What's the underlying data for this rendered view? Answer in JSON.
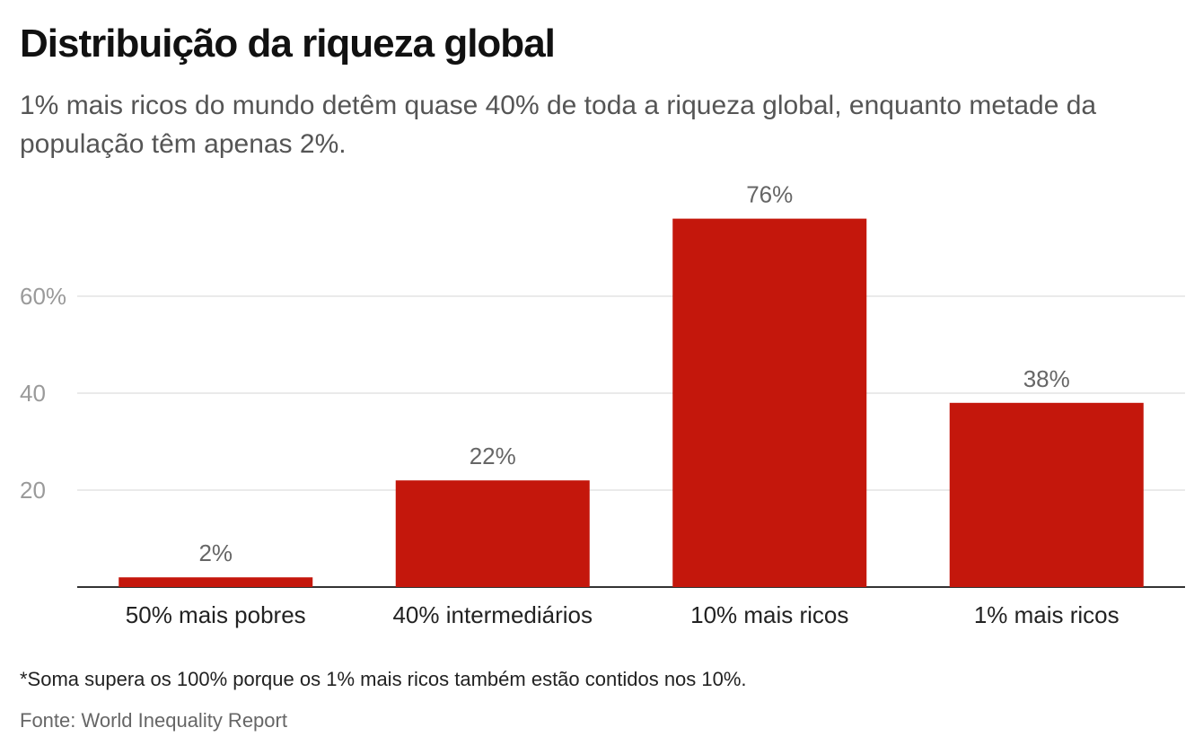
{
  "header": {
    "title": "Distribuição da riqueza global",
    "subtitle": "1% mais ricos do mundo detêm quase 40% de toda a riqueza global, enquanto metade da população têm apenas 2%."
  },
  "footer": {
    "note": "*Soma supera os 100% porque os 1% mais ricos também estão contidos nos 10%.",
    "source": "Fonte: World Inequality Report"
  },
  "colors": {
    "bar": "#c4170c",
    "grid": "#e3e3e3",
    "axis": "#333333",
    "tick_label": "#9a9a9a",
    "value_label": "#666666",
    "category_label": "#222222"
  },
  "chart_data": {
    "type": "bar",
    "categories": [
      "50% mais pobres",
      "40% intermediários",
      "10% mais ricos",
      "1% mais ricos"
    ],
    "values": [
      2,
      22,
      76,
      38
    ],
    "value_labels": [
      "2%",
      "22%",
      "76%",
      "38%"
    ],
    "yticks": [
      20,
      40,
      60
    ],
    "ytick_labels": [
      "20",
      "40",
      "60%"
    ],
    "ylim": [
      0,
      80
    ],
    "grid": true,
    "legend": "none"
  }
}
